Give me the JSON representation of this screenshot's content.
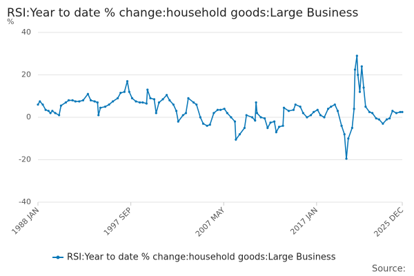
{
  "chart_data": {
    "type": "line",
    "title": "RSI:Year to date % change:household goods:Large Business",
    "y_label": "%",
    "source": "Source:",
    "xlim": [
      1988.0,
      2025.917
    ],
    "xticks": [
      {
        "value": 1988.0,
        "label": "1988 JAN"
      },
      {
        "value": 1997.667,
        "label": "1997 SEP"
      },
      {
        "value": 2007.333,
        "label": "2007 MAY"
      },
      {
        "value": 2017.0,
        "label": "2017 JAN"
      },
      {
        "value": 2025.917,
        "label": "2025 DEC"
      }
    ],
    "ylim": [
      -40,
      40
    ],
    "yticks": [
      -40,
      -20,
      0,
      20,
      40
    ],
    "grid": true,
    "legend": "bottom",
    "x": [
      1988.0,
      1988.2,
      1988.5,
      1988.8,
      1989.1,
      1989.3,
      1989.5,
      1989.8,
      1990.2,
      1990.4,
      1990.9,
      1991.2,
      1991.6,
      1991.9,
      1992.3,
      1992.7,
      1993.2,
      1993.5,
      1993.9,
      1994.2,
      1994.3,
      1994.5,
      1995.0,
      1995.4,
      1995.8,
      1996.3,
      1996.6,
      1997.0,
      1997.3,
      1997.5,
      1997.8,
      1998.2,
      1998.6,
      1998.9,
      1999.3,
      1999.4,
      1999.7,
      2000.1,
      2000.3,
      2000.6,
      2001.0,
      2001.4,
      2001.7,
      2002.1,
      2002.4,
      2002.6,
      2003.1,
      2003.4,
      2003.65,
      2004.2,
      2004.5,
      2004.9,
      2005.2,
      2005.6,
      2005.9,
      2006.3,
      2006.7,
      2007.0,
      2007.4,
      2007.7,
      2008.1,
      2008.5,
      2008.6,
      2009.0,
      2009.5,
      2009.7,
      2010.3,
      2010.6,
      2010.7,
      2010.8,
      2011.2,
      2011.6,
      2011.9,
      2012.2,
      2012.6,
      2012.8,
      2013.1,
      2013.5,
      2013.6,
      2014.1,
      2014.6,
      2014.8,
      2015.3,
      2015.6,
      2016.0,
      2016.4,
      2016.7,
      2017.1,
      2017.4,
      2017.8,
      2018.2,
      2018.5,
      2018.9,
      2019.2,
      2019.6,
      2019.9,
      2020.1,
      2020.3,
      2020.7,
      2020.9,
      2021.0,
      2021.2,
      2021.3,
      2021.5,
      2021.7,
      2021.9,
      2022.1,
      2022.5,
      2022.8,
      2023.2,
      2023.5,
      2023.9,
      2024.3,
      2024.6,
      2024.9,
      2025.3,
      2025.7,
      2025.917
    ],
    "series": [
      {
        "name": "RSI:Year to date % change:household goods:Large Business",
        "color": "#0a78b8",
        "values": [
          6,
          7.5,
          6,
          3.5,
          3,
          2,
          3,
          2,
          1,
          5.5,
          7,
          8,
          8,
          7.5,
          7.5,
          8,
          11,
          8,
          7.5,
          7,
          1,
          4.5,
          5,
          6,
          7.5,
          9,
          11.5,
          12,
          17,
          12,
          9,
          7.5,
          7,
          7,
          6.5,
          13,
          9,
          8.5,
          2,
          7,
          8.5,
          10.5,
          8,
          6,
          3,
          -2,
          1,
          2,
          9,
          7,
          6,
          0,
          -3,
          -4,
          -3.5,
          2,
          3.5,
          3.5,
          4,
          2,
          0,
          -2,
          -10.5,
          -8,
          -5,
          1,
          0,
          -1.5,
          7,
          2,
          0,
          -0.5,
          -5,
          -2.5,
          -2,
          -7,
          -4.5,
          -4,
          4.5,
          3,
          3.5,
          6,
          5,
          2,
          0,
          1,
          2.5,
          3.5,
          1,
          0,
          4,
          5,
          6,
          3,
          -4,
          -8,
          -19.5,
          -10,
          -5,
          4,
          22.5,
          29,
          20,
          12,
          24,
          14,
          5,
          2.5,
          2,
          -0.5,
          -1,
          -3,
          -1,
          -0.5,
          3,
          2,
          2.5,
          2.5
        ]
      }
    ]
  }
}
